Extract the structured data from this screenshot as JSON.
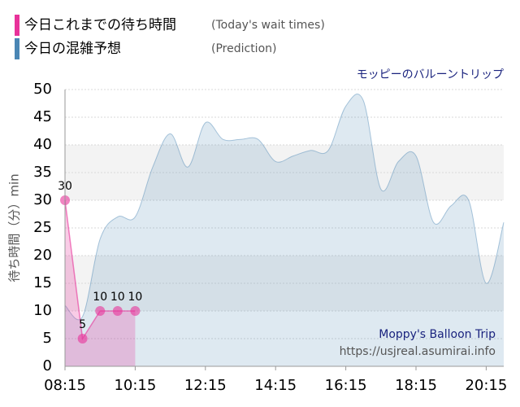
{
  "legend_title": "今日これまでの待ち時間",
  "legend_subtitle": "(Today's wait times)",
  "chart_data": {
    "type": "line",
    "title": "モッピーのバルーントリップ",
    "ylabel": "待ち時間（分）min",
    "watermark": [
      "Moppy's Balloon Trip",
      "https://usjreal.asumirai.info"
    ],
    "xlim": [
      "08:15",
      "20:45"
    ],
    "xticks": [
      "08:15",
      "10:15",
      "12:15",
      "14:15",
      "16:15",
      "18:15",
      "20:15"
    ],
    "ylim": [
      0,
      50
    ],
    "yticks": [
      0,
      5,
      10,
      15,
      20,
      25,
      30,
      35,
      40,
      45,
      50
    ],
    "grid": true,
    "series": [
      {
        "name": "今日これまでの待ち時間",
        "note": "(Today's wait times)",
        "color": "#e8329a",
        "x": [
          "08:15",
          "08:45",
          "09:15",
          "09:45",
          "10:15"
        ],
        "values": [
          30,
          5,
          10,
          10,
          10
        ]
      },
      {
        "name": "今日の混雑予想",
        "note": "(Prediction)",
        "color": "#4a86b4",
        "x": [
          "08:15",
          "08:45",
          "09:15",
          "09:45",
          "10:15",
          "10:45",
          "11:15",
          "11:45",
          "12:15",
          "12:45",
          "13:15",
          "13:45",
          "14:15",
          "14:45",
          "15:15",
          "15:45",
          "16:15",
          "16:45",
          "17:15",
          "17:45",
          "18:15",
          "18:45",
          "19:15",
          "19:45",
          "20:15",
          "20:45"
        ],
        "values": [
          11,
          9,
          23,
          27,
          27,
          36,
          42,
          36,
          44,
          41,
          41,
          41,
          37,
          38,
          39,
          39,
          47,
          48,
          32,
          37,
          38,
          26,
          29,
          30,
          15,
          26
        ]
      }
    ]
  }
}
